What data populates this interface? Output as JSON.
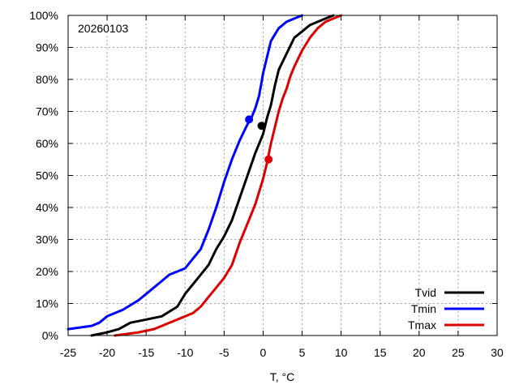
{
  "chart_data": {
    "type": "line",
    "annotation": "20260103",
    "xlabel": "T, °C",
    "ylabel": "",
    "xlim": [
      -25,
      30
    ],
    "ylim": [
      0,
      100
    ],
    "xticks": [
      -25,
      -20,
      -15,
      -10,
      -5,
      0,
      5,
      10,
      15,
      20,
      25,
      30
    ],
    "yticks": [
      0,
      10,
      20,
      30,
      40,
      50,
      60,
      70,
      80,
      90,
      100
    ],
    "xtick_labels": [
      "-25",
      "-20",
      "-15",
      "-10",
      "-5",
      "0",
      "5",
      "10",
      "15",
      "20",
      "25",
      "30"
    ],
    "ytick_labels": [
      "0%",
      "10%",
      "20%",
      "30%",
      "40%",
      "50%",
      "60%",
      "70%",
      "80%",
      "90%",
      "100%"
    ],
    "grid": true,
    "legend_position": "bottom-right",
    "series": [
      {
        "name": "Tvid",
        "color": "#000000",
        "x": [
          -22,
          -20,
          -18.5,
          -17,
          -15,
          -13,
          -11,
          -10,
          -9,
          -8,
          -7,
          -6,
          -5,
          -4,
          -3,
          -2,
          -1,
          0,
          0.5,
          1,
          1.5,
          2,
          3,
          4,
          5,
          6,
          7,
          8,
          9
        ],
        "y": [
          0,
          1,
          2,
          4,
          5,
          6,
          9,
          13,
          16,
          19,
          22,
          27,
          31,
          36,
          43,
          50,
          57,
          63,
          68,
          72,
          78,
          83,
          88,
          93,
          95,
          97,
          98,
          99,
          100
        ],
        "marker": {
          "x": -0.2,
          "y": 65.5
        }
      },
      {
        "name": "Tmin",
        "color": "#0000ff",
        "x": [
          -25,
          -22,
          -21,
          -20,
          -18,
          -16,
          -14,
          -13,
          -12,
          -11,
          -10,
          -9,
          -8,
          -7,
          -6,
          -5,
          -4,
          -3,
          -2,
          -1.5,
          -1,
          -0.5,
          0,
          0.5,
          1,
          1.5,
          2,
          2.5,
          3,
          4,
          5
        ],
        "y": [
          2,
          3,
          4,
          6,
          8,
          11,
          15,
          17,
          19,
          20,
          21,
          24,
          27,
          33,
          40,
          48,
          55,
          61,
          66,
          68,
          71,
          75,
          82,
          87,
          92,
          94,
          96,
          97,
          98,
          99,
          100
        ],
        "marker": {
          "x": -1.8,
          "y": 67.5
        }
      },
      {
        "name": "Tmax",
        "color": "#dd0000",
        "x": [
          -19,
          -16,
          -14,
          -12,
          -10,
          -9,
          -8,
          -7,
          -6,
          -5,
          -4,
          -3,
          -2,
          -1,
          0,
          0.5,
          1,
          1.5,
          2,
          2.5,
          3,
          3.5,
          4,
          5,
          6,
          7,
          8,
          9,
          10
        ],
        "y": [
          0,
          1,
          2,
          4,
          6,
          7,
          9,
          12,
          15,
          18,
          22,
          29,
          35,
          41,
          49,
          54,
          60,
          65,
          70,
          74,
          77,
          81,
          84,
          89,
          93,
          96,
          98,
          99,
          100
        ],
        "marker": {
          "x": 0.7,
          "y": 55
        }
      }
    ]
  }
}
